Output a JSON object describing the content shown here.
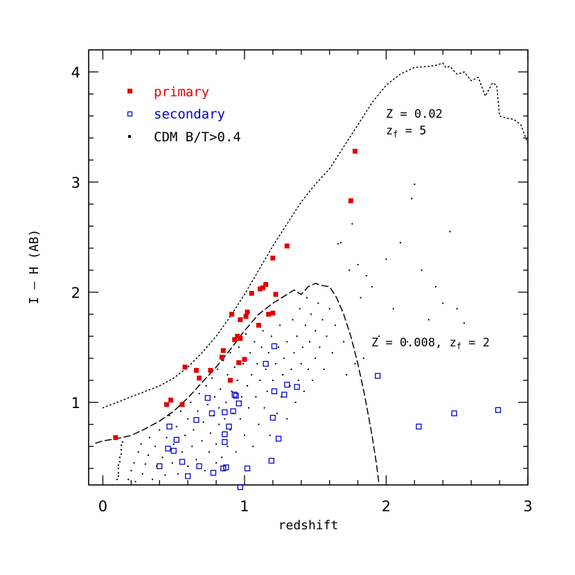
{
  "chart_data": {
    "type": "scatter",
    "xlabel": "redshift",
    "ylabel": "I – H (AB)",
    "xlim": [
      -0.1,
      3.0
    ],
    "ylim": [
      0.25,
      4.2
    ],
    "x_ticks": [
      0,
      1,
      2,
      3
    ],
    "x_tick_labels": [
      "0",
      "1",
      "2",
      "3"
    ],
    "y_ticks": [
      1,
      2,
      3,
      4
    ],
    "y_tick_labels": [
      "1",
      "2",
      "3",
      "4"
    ],
    "legend": {
      "placement": "top-left",
      "entries": [
        {
          "label": "primary",
          "color": "#e00000",
          "marker": "filled-square"
        },
        {
          "label": "secondary",
          "color": "#0000cc",
          "marker": "open-square"
        },
        {
          "label": "CDM B/T>0.4",
          "color": "#000000",
          "marker": "small-square"
        }
      ]
    },
    "annotations": [
      {
        "text": "Z = 0.02",
        "x": 2.0,
        "y": 3.7
      },
      {
        "text_main": "z",
        "text_sub": "f",
        "text_rest": " = 5",
        "x": 2.0,
        "y": 3.45
      },
      {
        "text_main": "Z = 0.008, z",
        "text_sub": "f",
        "text_rest": " = 2",
        "x": 1.9,
        "y": 1.48
      }
    ],
    "curves": [
      {
        "name": "Z = 0.02, zf = 5",
        "style": "dotted",
        "x": [
          0.0,
          0.1,
          0.2,
          0.3,
          0.4,
          0.5,
          0.6,
          0.7,
          0.8,
          0.9,
          1.0,
          1.1,
          1.2,
          1.3,
          1.4,
          1.5,
          1.6,
          1.7,
          1.8,
          1.9,
          2.0,
          2.1,
          2.2,
          2.3,
          2.35,
          2.4,
          2.42,
          2.45,
          2.5,
          2.55,
          2.6,
          2.65,
          2.7,
          2.75,
          2.78,
          2.8,
          2.85,
          2.9,
          2.95,
          3.0
        ],
        "y": [
          0.95,
          1.0,
          1.05,
          1.1,
          1.15,
          1.22,
          1.32,
          1.45,
          1.6,
          1.78,
          1.98,
          2.2,
          2.42,
          2.62,
          2.82,
          2.98,
          3.12,
          3.32,
          3.52,
          3.72,
          3.88,
          3.98,
          4.04,
          4.05,
          4.06,
          4.08,
          4.04,
          4.05,
          3.98,
          4.0,
          3.92,
          3.95,
          3.78,
          3.9,
          3.88,
          3.6,
          3.58,
          3.57,
          3.52,
          3.35
        ]
      },
      {
        "name": "Z = 0.008, zf = 2",
        "style": "dashed",
        "x": [
          -0.05,
          0.0,
          0.1,
          0.2,
          0.3,
          0.4,
          0.5,
          0.6,
          0.7,
          0.8,
          0.9,
          1.0,
          1.1,
          1.2,
          1.3,
          1.35,
          1.4,
          1.45,
          1.5,
          1.55,
          1.6,
          1.65,
          1.7,
          1.75,
          1.8,
          1.85,
          1.9,
          1.93,
          1.95
        ],
        "y": [
          0.63,
          0.65,
          0.67,
          0.7,
          0.76,
          0.83,
          0.92,
          1.04,
          1.18,
          1.32,
          1.48,
          1.65,
          1.8,
          1.9,
          1.98,
          2.02,
          1.98,
          2.05,
          2.08,
          2.06,
          2.05,
          1.95,
          1.8,
          1.6,
          1.35,
          1.05,
          0.7,
          0.45,
          0.25
        ]
      }
    ],
    "series": [
      {
        "name": "primary",
        "color": "#e00000",
        "marker": "filled-square",
        "points": [
          [
            0.09,
            0.68
          ],
          [
            0.45,
            0.98
          ],
          [
            0.48,
            1.02
          ],
          [
            0.56,
            0.98
          ],
          [
            0.58,
            1.32
          ],
          [
            0.66,
            1.29
          ],
          [
            0.68,
            1.22
          ],
          [
            0.76,
            1.29
          ],
          [
            0.84,
            1.41
          ],
          [
            0.85,
            1.47
          ],
          [
            0.9,
            1.2
          ],
          [
            0.91,
            1.8
          ],
          [
            0.93,
            1.57
          ],
          [
            0.95,
            1.6
          ],
          [
            0.96,
            1.36
          ],
          [
            0.97,
            1.58
          ],
          [
            0.97,
            1.75
          ],
          [
            1.0,
            1.39
          ],
          [
            1.01,
            1.78
          ],
          [
            1.02,
            1.82
          ],
          [
            1.05,
            1.99
          ],
          [
            1.1,
            1.7
          ],
          [
            1.11,
            2.03
          ],
          [
            1.13,
            2.04
          ],
          [
            1.15,
            2.07
          ],
          [
            1.17,
            1.8
          ],
          [
            1.2,
            1.81
          ],
          [
            1.2,
            2.31
          ],
          [
            1.22,
            1.98
          ],
          [
            1.3,
            2.42
          ],
          [
            1.75,
            2.83
          ],
          [
            1.78,
            3.28
          ]
        ]
      },
      {
        "name": "secondary",
        "color": "#0000cc",
        "marker": "open-square",
        "points": [
          [
            0.4,
            0.42
          ],
          [
            0.46,
            0.58
          ],
          [
            0.47,
            0.78
          ],
          [
            0.5,
            0.56
          ],
          [
            0.52,
            0.66
          ],
          [
            0.56,
            0.46
          ],
          [
            0.6,
            0.33
          ],
          [
            0.66,
            0.84
          ],
          [
            0.68,
            0.42
          ],
          [
            0.74,
            1.04
          ],
          [
            0.77,
            0.9
          ],
          [
            0.78,
            0.36
          ],
          [
            0.85,
            0.4
          ],
          [
            0.86,
            0.64
          ],
          [
            0.86,
            0.71
          ],
          [
            0.86,
            0.91
          ],
          [
            0.87,
            0.41
          ],
          [
            0.89,
            0.78
          ],
          [
            0.92,
            0.92
          ],
          [
            0.93,
            1.07
          ],
          [
            0.94,
            1.06
          ],
          [
            0.96,
            0.99
          ],
          [
            0.97,
            0.23
          ],
          [
            1.02,
            0.4
          ],
          [
            1.15,
            1.35
          ],
          [
            1.19,
            0.47
          ],
          [
            1.2,
            0.86
          ],
          [
            1.21,
            1.1
          ],
          [
            1.21,
            1.51
          ],
          [
            1.24,
            0.67
          ],
          [
            1.28,
            1.07
          ],
          [
            1.3,
            1.16
          ],
          [
            1.37,
            1.14
          ],
          [
            1.94,
            1.24
          ],
          [
            2.23,
            0.78
          ],
          [
            2.48,
            0.9
          ],
          [
            2.79,
            0.93
          ]
        ]
      },
      {
        "name": "CDM B/T>0.4",
        "color": "#000000",
        "marker": "small-square",
        "points": [
          [
            0.1,
            0.3
          ],
          [
            0.11,
            0.33
          ],
          [
            0.11,
            0.36
          ],
          [
            0.11,
            0.4
          ],
          [
            0.11,
            0.43
          ],
          [
            0.12,
            0.46
          ],
          [
            0.12,
            0.5
          ],
          [
            0.13,
            0.53
          ],
          [
            0.13,
            0.57
          ],
          [
            0.13,
            0.61
          ],
          [
            0.14,
            0.64
          ],
          [
            0.18,
            0.3
          ],
          [
            0.2,
            0.38
          ],
          [
            0.22,
            0.45
          ],
          [
            0.23,
            0.28
          ],
          [
            0.25,
            0.55
          ],
          [
            0.27,
            0.62
          ],
          [
            0.28,
            0.35
          ],
          [
            0.3,
            0.44
          ],
          [
            0.32,
            0.52
          ],
          [
            0.33,
            0.68
          ],
          [
            0.35,
            0.3
          ],
          [
            0.37,
            0.6
          ],
          [
            0.38,
            0.42
          ],
          [
            0.4,
            0.75
          ],
          [
            0.42,
            0.5
          ],
          [
            0.44,
            0.34
          ],
          [
            0.45,
            0.68
          ],
          [
            0.47,
            0.88
          ],
          [
            0.49,
            0.45
          ],
          [
            0.5,
            0.62
          ],
          [
            0.52,
            0.78
          ],
          [
            0.53,
            0.35
          ],
          [
            0.55,
            0.92
          ],
          [
            0.56,
            0.55
          ],
          [
            0.58,
            0.7
          ],
          [
            0.6,
            0.85
          ],
          [
            0.6,
            0.42
          ],
          [
            0.62,
            1.0
          ],
          [
            0.63,
            0.6
          ],
          [
            0.64,
            0.75
          ],
          [
            0.66,
            0.48
          ],
          [
            0.67,
            0.92
          ],
          [
            0.68,
            1.08
          ],
          [
            0.7,
            0.65
          ],
          [
            0.71,
            0.82
          ],
          [
            0.72,
            0.38
          ],
          [
            0.73,
            1.15
          ],
          [
            0.74,
            0.98
          ],
          [
            0.75,
            0.55
          ],
          [
            0.76,
            0.72
          ],
          [
            0.77,
            1.22
          ],
          [
            0.78,
            0.88
          ],
          [
            0.79,
            1.05
          ],
          [
            0.8,
            0.45
          ],
          [
            0.8,
            0.62
          ],
          [
            0.81,
            1.3
          ],
          [
            0.82,
            0.8
          ],
          [
            0.82,
            0.95
          ],
          [
            0.83,
            1.12
          ],
          [
            0.84,
            0.5
          ],
          [
            0.85,
            1.38
          ],
          [
            0.86,
            0.85
          ],
          [
            0.87,
            1.0
          ],
          [
            0.88,
            1.25
          ],
          [
            0.88,
            0.6
          ],
          [
            0.9,
            1.45
          ],
          [
            0.9,
            0.75
          ],
          [
            0.91,
            1.1
          ],
          [
            0.92,
            0.9
          ],
          [
            0.93,
            1.32
          ],
          [
            0.94,
            0.55
          ],
          [
            0.95,
            1.2
          ],
          [
            0.96,
            1.5
          ],
          [
            0.97,
            0.85
          ],
          [
            0.98,
            1.05
          ],
          [
            0.99,
            1.35
          ],
          [
            1.0,
            0.7
          ],
          [
            1.01,
            1.62
          ],
          [
            1.02,
            1.15
          ],
          [
            1.03,
            0.95
          ],
          [
            1.04,
            1.45
          ],
          [
            1.05,
            1.25
          ],
          [
            1.06,
            0.6
          ],
          [
            1.07,
            1.55
          ],
          [
            1.08,
            1.05
          ],
          [
            1.09,
            1.35
          ],
          [
            1.1,
            0.8
          ],
          [
            1.11,
            1.2
          ],
          [
            1.12,
            1.5
          ],
          [
            1.13,
            1.65
          ],
          [
            1.14,
            0.95
          ],
          [
            1.15,
            1.3
          ],
          [
            1.16,
            1.1
          ],
          [
            1.17,
            1.45
          ],
          [
            1.18,
            0.7
          ],
          [
            1.19,
            1.6
          ],
          [
            1.2,
            1.2
          ],
          [
            1.22,
            1.35
          ],
          [
            1.23,
            0.9
          ],
          [
            1.24,
            1.5
          ],
          [
            1.25,
            1.7
          ],
          [
            1.26,
            1.05
          ],
          [
            1.27,
            1.25
          ],
          [
            1.28,
            1.4
          ],
          [
            1.3,
            1.55
          ],
          [
            1.3,
            0.85
          ],
          [
            1.32,
            1.15
          ],
          [
            1.33,
            1.3
          ],
          [
            1.34,
            1.75
          ],
          [
            1.35,
            1.45
          ],
          [
            1.36,
            1.0
          ],
          [
            1.37,
            1.6
          ],
          [
            1.38,
            1.2
          ],
          [
            1.39,
            1.85
          ],
          [
            1.4,
            1.35
          ],
          [
            1.41,
            1.5
          ],
          [
            1.42,
            1.1
          ],
          [
            1.43,
            1.7
          ],
          [
            1.44,
            1.95
          ],
          [
            1.45,
            1.3
          ],
          [
            1.46,
            1.55
          ],
          [
            1.47,
            1.8
          ],
          [
            1.48,
            1.2
          ],
          [
            1.5,
            1.65
          ],
          [
            1.5,
            1.4
          ],
          [
            1.52,
            1.9
          ],
          [
            1.53,
            1.5
          ],
          [
            1.55,
            1.75
          ],
          [
            1.56,
            1.3
          ],
          [
            1.58,
            1.6
          ],
          [
            1.6,
            1.85
          ],
          [
            1.62,
            1.45
          ],
          [
            1.64,
            1.7
          ],
          [
            1.66,
            2.44
          ],
          [
            1.68,
            2.45
          ],
          [
            1.7,
            1.55
          ],
          [
            1.72,
            1.25
          ],
          [
            1.74,
            2.2
          ],
          [
            1.76,
            2.62
          ],
          [
            1.78,
            1.35
          ],
          [
            1.8,
            2.25
          ],
          [
            1.82,
            1.95
          ],
          [
            1.84,
            1.4
          ],
          [
            1.86,
            2.15
          ],
          [
            1.9,
            2.05
          ],
          [
            1.95,
            1.6
          ],
          [
            2.0,
            2.3
          ],
          [
            2.05,
            1.85
          ],
          [
            2.1,
            2.45
          ],
          [
            2.15,
            1.55
          ],
          [
            2.18,
            2.85
          ],
          [
            2.2,
            2.98
          ],
          [
            2.25,
            2.2
          ],
          [
            2.3,
            1.75
          ],
          [
            2.35,
            2.05
          ],
          [
            2.4,
            1.9
          ],
          [
            2.45,
            2.55
          ],
          [
            2.5,
            1.85
          ],
          [
            2.55,
            1.72
          ]
        ]
      }
    ]
  }
}
